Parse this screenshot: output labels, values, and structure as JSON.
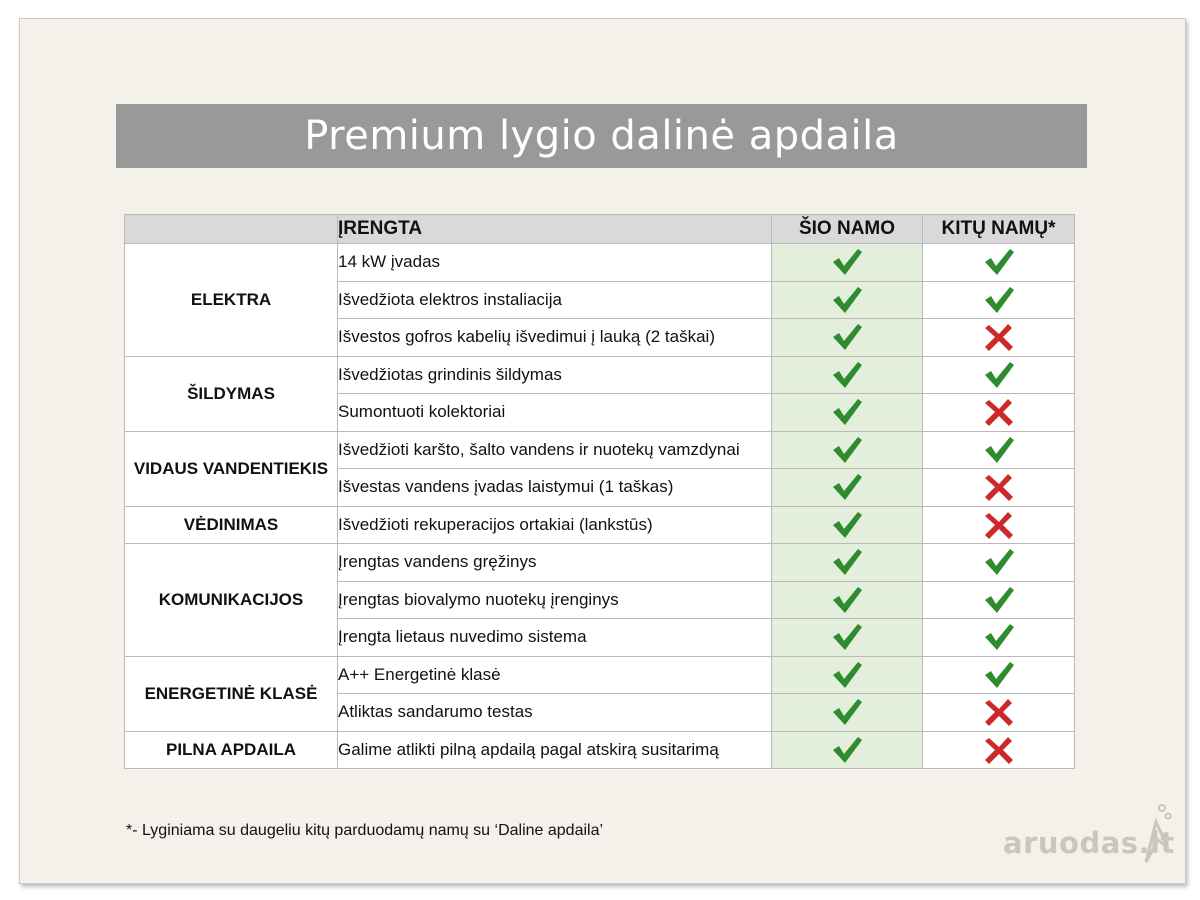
{
  "title": "Premium lygio dalinė apdaila",
  "table": {
    "headers": {
      "item": "ĮRENGTA",
      "this_house": "ŠIO NAMO",
      "other_houses": "KITŲ NAMŲ*"
    },
    "colors": {
      "check": "#2e8b2e",
      "cross": "#cc2a2a",
      "this_col_bg": "#e3efdc",
      "header_bg": "#d9d9d9"
    },
    "groups": [
      {
        "category": "ELEKTRA",
        "rows": [
          {
            "item": "14 kW įvadas",
            "this": "check",
            "other": "check"
          },
          {
            "item": "Išvedžiota elektros instaliacija",
            "this": "check",
            "other": "check"
          },
          {
            "item": "Išvestos gofros kabelių išvedimui į lauką (2 taškai)",
            "this": "check",
            "other": "cross"
          }
        ]
      },
      {
        "category": "ŠILDYMAS",
        "rows": [
          {
            "item": "Išvedžiotas grindinis šildymas",
            "this": "check",
            "other": "check"
          },
          {
            "item": "Sumontuoti kolektoriai",
            "this": "check",
            "other": "cross"
          }
        ]
      },
      {
        "category": "VIDAUS VANDENTIEKIS",
        "rows": [
          {
            "item": "Išvedžioti karšto, šalto vandens ir nuotekų vamzdynai",
            "this": "check",
            "other": "check"
          },
          {
            "item": "Išvestas vandens įvadas laistymui (1 taškas)",
            "this": "check",
            "other": "cross"
          }
        ]
      },
      {
        "category": "VĖDINIMAS",
        "rows": [
          {
            "item": "Išvedžioti rekuperacijos ortakiai (lankstūs)",
            "this": "check",
            "other": "cross"
          }
        ]
      },
      {
        "category": "KOMUNIKACIJOS",
        "rows": [
          {
            "item": "Įrengtas vandens gręžinys",
            "this": "check",
            "other": "check"
          },
          {
            "item": "Įrengtas biovalymo nuotekų įrenginys",
            "this": "check",
            "other": "check"
          },
          {
            "item": "Įrengta lietaus nuvedimo sistema",
            "this": "check",
            "other": "check"
          }
        ]
      },
      {
        "category": "ENERGETINĖ KLASĖ",
        "rows": [
          {
            "item": "A++ Energetinė klasė",
            "this": "check",
            "other": "check"
          },
          {
            "item": "Atliktas sandarumo testas",
            "this": "check",
            "other": "cross"
          }
        ]
      },
      {
        "category": "PILNA APDAILA",
        "rows": [
          {
            "item": "Galime atlikti pilną apdailą pagal atskirą susitarimą",
            "this": "check",
            "other": "cross"
          }
        ]
      }
    ]
  },
  "footnote": "*- Lyginiama su daugeliu kitų parduodamų namų su ‘Daline apdaila’",
  "watermark": "aruodas.lt"
}
